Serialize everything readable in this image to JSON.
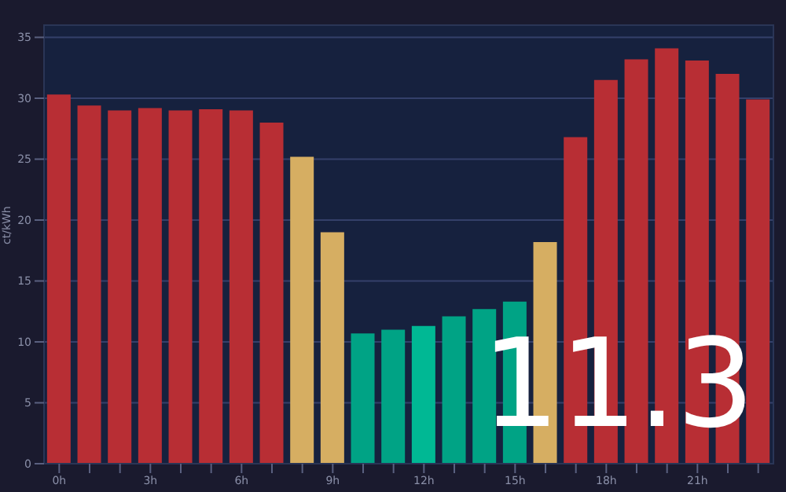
{
  "chart_data": {
    "type": "bar",
    "categories": [
      "0h",
      null,
      null,
      "3h",
      null,
      null,
      "6h",
      null,
      null,
      "9h",
      null,
      null,
      "12h",
      null,
      null,
      "15h",
      null,
      null,
      "18h",
      null,
      null,
      "21h",
      null,
      null
    ],
    "values": [
      30.3,
      29.4,
      29.0,
      29.2,
      29.0,
      29.1,
      29.0,
      28.0,
      25.2,
      19.0,
      10.7,
      11.0,
      11.3,
      12.1,
      12.7,
      13.3,
      18.2,
      26.8,
      31.5,
      33.2,
      34.1,
      33.1,
      32.0,
      29.9
    ],
    "colors": [
      "#b82e34",
      "#b82e34",
      "#b82e34",
      "#b82e34",
      "#b82e34",
      "#b82e34",
      "#b82e34",
      "#b82e34",
      "#d6ae62",
      "#d6ae62",
      "#00a385",
      "#00a385",
      "#00b894",
      "#00a385",
      "#00a385",
      "#00a385",
      "#d6ae62",
      "#b82e34",
      "#b82e34",
      "#b82e34",
      "#b82e34",
      "#b82e34",
      "#b82e34",
      "#b82e34"
    ],
    "ylabel": "ct/kWh",
    "ylim": [
      0,
      36
    ],
    "yticks": [
      0,
      5,
      10,
      15,
      20,
      25,
      30,
      35
    ],
    "grid": "y",
    "annotations": [
      "11.3"
    ]
  }
}
